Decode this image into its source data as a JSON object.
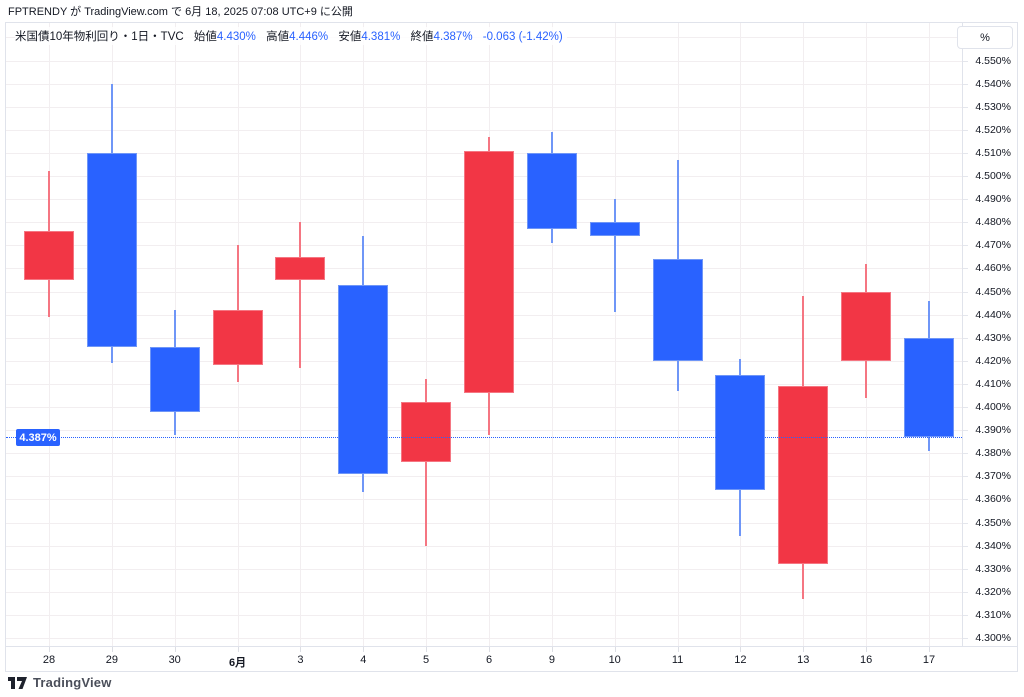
{
  "attribution": "FPTRENDY が TradingView.com で 6月 18, 2025 07:08 UTC+9 に公開",
  "legend": {
    "title": "米国債10年物利回り・1日・TVC",
    "fields": [
      {
        "label": "始値",
        "value": "4.430%"
      },
      {
        "label": "高値",
        "value": "4.446%"
      },
      {
        "label": "安値",
        "value": "4.381%"
      },
      {
        "label": "終値",
        "value": "4.387%"
      }
    ],
    "change": "-0.063 (-1.42%)"
  },
  "price_axis": {
    "unit_button": "%",
    "labels": [
      "4.550%",
      "4.540%",
      "4.530%",
      "4.520%",
      "4.510%",
      "4.500%",
      "4.490%",
      "4.480%",
      "4.470%",
      "4.460%",
      "4.450%",
      "4.440%",
      "4.430%",
      "4.420%",
      "4.410%",
      "4.400%",
      "4.390%",
      "4.380%",
      "4.370%",
      "4.360%",
      "4.350%",
      "4.340%",
      "4.330%",
      "4.320%",
      "4.310%",
      "4.300%"
    ],
    "last_price_label": "4.387%"
  },
  "time_axis": {
    "labels": [
      {
        "text": "28",
        "emphasis": false
      },
      {
        "text": "29",
        "emphasis": false
      },
      {
        "text": "30",
        "emphasis": false
      },
      {
        "text": "6月",
        "emphasis": true
      },
      {
        "text": "3",
        "emphasis": false
      },
      {
        "text": "4",
        "emphasis": false
      },
      {
        "text": "5",
        "emphasis": false
      },
      {
        "text": "6",
        "emphasis": false
      },
      {
        "text": "9",
        "emphasis": false
      },
      {
        "text": "10",
        "emphasis": false
      },
      {
        "text": "11",
        "emphasis": false
      },
      {
        "text": "12",
        "emphasis": false
      },
      {
        "text": "13",
        "emphasis": false
      },
      {
        "text": "16",
        "emphasis": false
      },
      {
        "text": "17",
        "emphasis": false
      }
    ]
  },
  "footer": {
    "brand": "TradingView"
  },
  "colors": {
    "accent_blue": "#2962ff",
    "up_red": "#f23645",
    "grid": "#f2eef0",
    "border": "#e0e3eb",
    "text": "#131722"
  },
  "chart_data": {
    "type": "candlestick",
    "title": "米国債10年物利回り・1日・TVC",
    "yunit": "%",
    "ylim": [
      4.3,
      4.56
    ],
    "y_tick_step": 0.01,
    "last_price": 4.387,
    "up_color": "#f23645",
    "down_color": "#2962ff",
    "up_wick_color": "#f57682",
    "down_wick_color": "#6f96f7",
    "candles": [
      {
        "date": "28",
        "open": 4.455,
        "high": 4.502,
        "low": 4.439,
        "close": 4.476
      },
      {
        "date": "29",
        "open": 4.51,
        "high": 4.54,
        "low": 4.419,
        "close": 4.426
      },
      {
        "date": "30",
        "open": 4.426,
        "high": 4.442,
        "low": 4.388,
        "close": 4.398
      },
      {
        "date": "6月",
        "open": 4.418,
        "high": 4.47,
        "low": 4.411,
        "close": 4.442
      },
      {
        "date": "3",
        "open": 4.455,
        "high": 4.48,
        "low": 4.417,
        "close": 4.465
      },
      {
        "date": "4",
        "open": 4.453,
        "high": 4.474,
        "low": 4.363,
        "close": 4.371
      },
      {
        "date": "5",
        "open": 4.376,
        "high": 4.412,
        "low": 4.34,
        "close": 4.402
      },
      {
        "date": "6",
        "open": 4.406,
        "high": 4.517,
        "low": 4.388,
        "close": 4.511
      },
      {
        "date": "9",
        "open": 4.51,
        "high": 4.519,
        "low": 4.471,
        "close": 4.477
      },
      {
        "date": "10",
        "open": 4.48,
        "high": 4.49,
        "low": 4.441,
        "close": 4.474
      },
      {
        "date": "11",
        "open": 4.464,
        "high": 4.507,
        "low": 4.407,
        "close": 4.42
      },
      {
        "date": "12",
        "open": 4.414,
        "high": 4.421,
        "low": 4.344,
        "close": 4.364
      },
      {
        "date": "13",
        "open": 4.332,
        "high": 4.448,
        "low": 4.317,
        "close": 4.409
      },
      {
        "date": "16",
        "open": 4.42,
        "high": 4.462,
        "low": 4.404,
        "close": 4.45
      },
      {
        "date": "17",
        "open": 4.43,
        "high": 4.446,
        "low": 4.381,
        "close": 4.387
      }
    ]
  }
}
